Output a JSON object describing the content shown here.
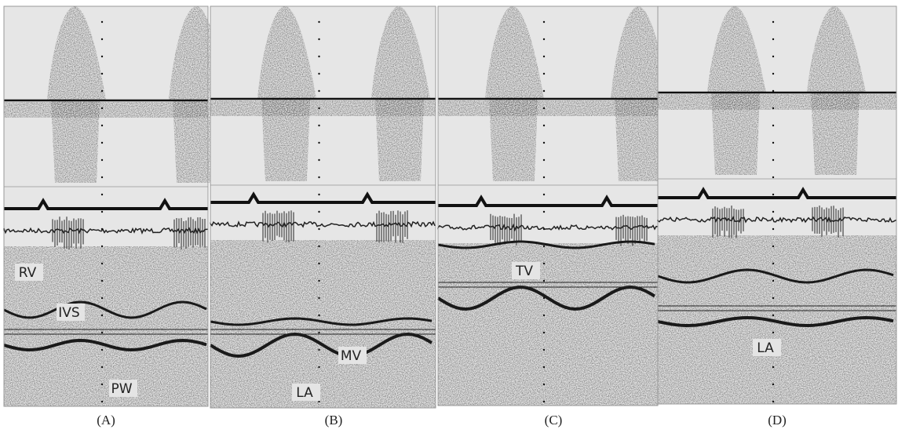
{
  "panels": [
    {
      "caption": "(A)",
      "labels": [
        "RV",
        "IVS",
        "PW"
      ]
    },
    {
      "caption": "(B)",
      "labels": [
        "MV",
        "LA"
      ]
    },
    {
      "caption": "(C)",
      "labels": [
        "TV"
      ]
    },
    {
      "caption": "(D)",
      "labels": [
        "LA"
      ]
    }
  ]
}
